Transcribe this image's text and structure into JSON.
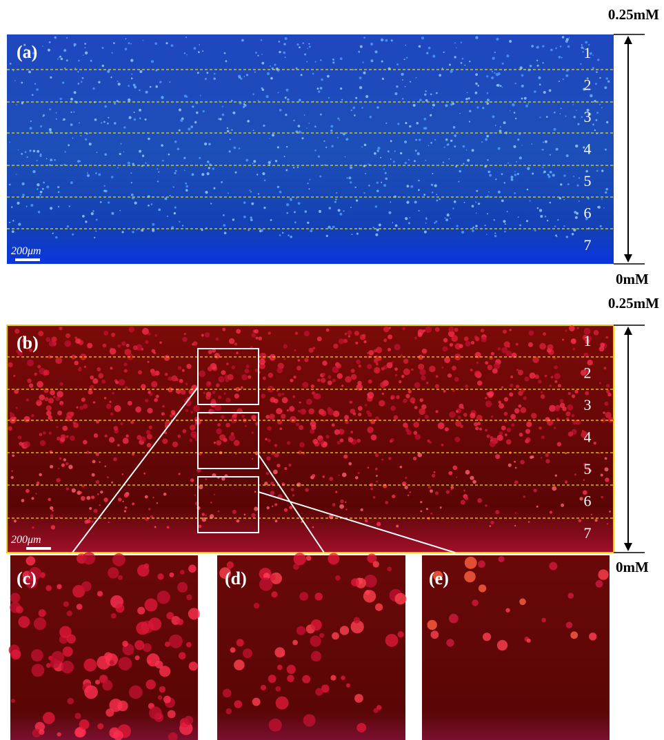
{
  "gradient": {
    "top_label": "0.25mM",
    "bottom_label": "0mM"
  },
  "panels": [
    {
      "label": "(a)",
      "scale_bar": "200μm",
      "lanes": [
        "1",
        "2",
        "3",
        "4",
        "5",
        "6",
        "7"
      ]
    },
    {
      "label": "(b)",
      "scale_bar": "200μm",
      "lanes": [
        "1",
        "2",
        "3",
        "4",
        "5",
        "6",
        "7"
      ]
    }
  ],
  "insets": [
    {
      "label": "(c)"
    },
    {
      "label": "(d)"
    },
    {
      "label": "(e)"
    }
  ]
}
